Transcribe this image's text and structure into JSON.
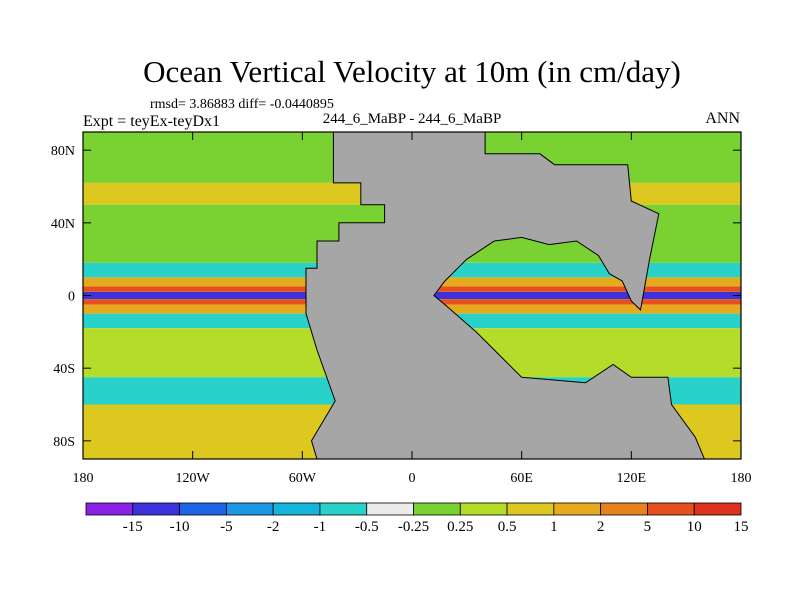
{
  "chart_data": {
    "type": "heatmap",
    "title": "Ocean Vertical Velocity at 10m (in cm/day)",
    "stats_text": "rmsd= 3.86883  diff= -0.0440895",
    "left_label": "Expt = teyEx-teyDx1",
    "center_label": "244_6_MaBP - 244_6_MaBP",
    "right_label": "ANN",
    "x_ticks": [
      {
        "lon": -180,
        "label": "180"
      },
      {
        "lon": -120,
        "label": "120W"
      },
      {
        "lon": -60,
        "label": "60W"
      },
      {
        "lon": 0,
        "label": "0"
      },
      {
        "lon": 60,
        "label": "60E"
      },
      {
        "lon": 120,
        "label": "120E"
      },
      {
        "lon": 180,
        "label": "180"
      }
    ],
    "y_ticks": [
      {
        "lat": 80,
        "label": "80N"
      },
      {
        "lat": 40,
        "label": "40N"
      },
      {
        "lat": 0,
        "label": "0"
      },
      {
        "lat": -40,
        "label": "40S"
      },
      {
        "lat": -80,
        "label": "80S"
      }
    ],
    "xlim": [
      -180,
      180
    ],
    "ylim": [
      -90,
      90
    ],
    "colorbar": {
      "colors": [
        "#8a22e8",
        "#3c32dc",
        "#1e64e6",
        "#1e96e6",
        "#14b4dc",
        "#28d2c8",
        "#ebebeb",
        "#7ad232",
        "#b4dc28",
        "#dcc81e",
        "#e6aa1e",
        "#e6821e",
        "#e6501e",
        "#dc321e"
      ],
      "labels": [
        "-15",
        "-10",
        "-5",
        "-2",
        "-1",
        "-0.5",
        "-0.25",
        "0.25",
        "0.5",
        "1",
        "2",
        "5",
        "10",
        "15"
      ]
    },
    "field_bands": [
      {
        "lat_min": -2,
        "lat_max": 2,
        "value": -12
      },
      {
        "lat_min": 2,
        "lat_max": 5,
        "value": 6
      },
      {
        "lat_min": -5,
        "lat_max": -2,
        "value": 6
      },
      {
        "lat_min": 5,
        "lat_max": 10,
        "value": 1.5
      },
      {
        "lat_min": -10,
        "lat_max": -5,
        "value": 1.5
      },
      {
        "lat_min": 10,
        "lat_max": 18,
        "value": -0.7
      },
      {
        "lat_min": -18,
        "lat_max": -10,
        "value": -0.7
      },
      {
        "lat_min": 18,
        "lat_max": 50,
        "value": 0
      },
      {
        "lat_min": -45,
        "lat_max": -18,
        "value": 0.4
      },
      {
        "lat_min": 50,
        "lat_max": 62,
        "value": 0.8
      },
      {
        "lat_min": -60,
        "lat_max": -45,
        "value": -0.8
      },
      {
        "lat_min": 62,
        "lat_max": 90,
        "value": 0
      },
      {
        "lat_min": -90,
        "lat_max": -60,
        "value": 0.6
      }
    ],
    "land_polygons": [
      [
        [
          -43,
          90
        ],
        [
          -43,
          62
        ],
        [
          -28,
          62
        ],
        [
          -28,
          50
        ],
        [
          -15,
          50
        ],
        [
          -15,
          40
        ],
        [
          -40,
          40
        ],
        [
          -40,
          30
        ],
        [
          -52,
          30
        ],
        [
          -52,
          15
        ],
        [
          -58,
          15
        ],
        [
          -58,
          -10
        ],
        [
          -52,
          -30
        ],
        [
          -42,
          -58
        ],
        [
          -55,
          -80
        ],
        [
          -52,
          -90
        ],
        [
          160,
          -90
        ],
        [
          155,
          -78
        ],
        [
          142,
          -60
        ],
        [
          140,
          -45
        ],
        [
          120,
          -45
        ],
        [
          110,
          -38
        ],
        [
          95,
          -48
        ],
        [
          60,
          -45
        ],
        [
          45,
          -30
        ],
        [
          35,
          -20
        ],
        [
          18,
          -5
        ],
        [
          12,
          0
        ],
        [
          18,
          8
        ],
        [
          30,
          20
        ],
        [
          45,
          30
        ],
        [
          60,
          32
        ],
        [
          75,
          28
        ],
        [
          90,
          30
        ],
        [
          102,
          22
        ],
        [
          108,
          12
        ],
        [
          115,
          8
        ],
        [
          120,
          -3
        ],
        [
          125,
          -8
        ],
        [
          130,
          20
        ],
        [
          135,
          45
        ],
        [
          120,
          52
        ],
        [
          118,
          72
        ],
        [
          78,
          72
        ],
        [
          70,
          78
        ],
        [
          40,
          78
        ],
        [
          40,
          90
        ]
      ]
    ]
  }
}
